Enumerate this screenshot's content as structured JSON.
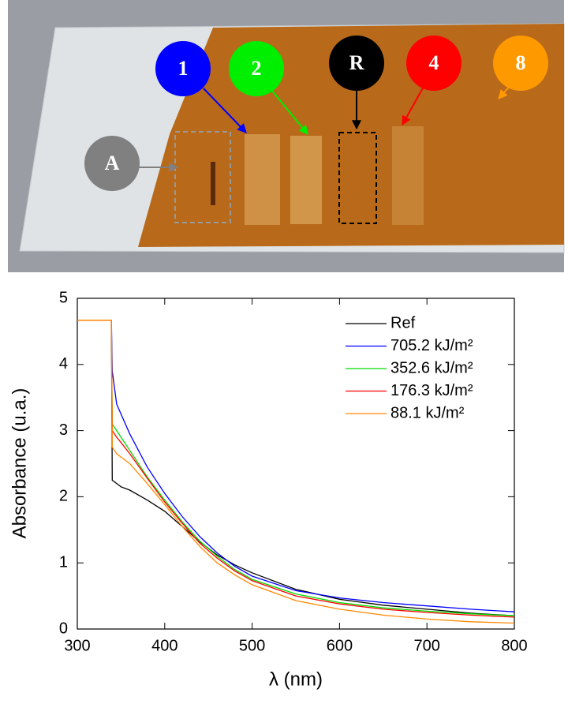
{
  "photo": {
    "markers": [
      "A",
      "1",
      "2",
      "R",
      "4",
      "8"
    ]
  },
  "chart_data": {
    "type": "line",
    "x_label": "λ (nm)",
    "y_label": "Absorbance (u.a.)",
    "xlim": [
      300,
      800
    ],
    "xticks": [
      300,
      400,
      500,
      600,
      700,
      800
    ],
    "ylim": [
      0,
      5
    ],
    "yticks": [
      0,
      1,
      2,
      3,
      4,
      5
    ],
    "legend": "upper right",
    "x": [
      300,
      320,
      339,
      340,
      345,
      350,
      360,
      380,
      400,
      420,
      440,
      460,
      480,
      500,
      550,
      600,
      650,
      700,
      750,
      800
    ],
    "series": [
      {
        "name": "Ref",
        "color": "#000000",
        "values": [
          4.67,
          4.67,
          4.67,
          2.25,
          2.2,
          2.15,
          2.1,
          1.95,
          1.78,
          1.55,
          1.32,
          1.12,
          0.97,
          0.85,
          0.6,
          0.45,
          0.36,
          0.3,
          0.24,
          0.2
        ]
      },
      {
        "name": "705.2 kJ/m²",
        "color": "#0000ff",
        "values": [
          4.67,
          4.67,
          4.67,
          3.9,
          3.4,
          3.25,
          2.95,
          2.45,
          2.05,
          1.7,
          1.4,
          1.15,
          0.95,
          0.8,
          0.58,
          0.47,
          0.4,
          0.35,
          0.3,
          0.26
        ]
      },
      {
        "name": "352.6 kJ/m²",
        "color": "#00dd00",
        "values": [
          4.67,
          4.67,
          4.67,
          3.1,
          3.0,
          2.9,
          2.7,
          2.3,
          1.95,
          1.62,
          1.33,
          1.1,
          0.9,
          0.75,
          0.53,
          0.4,
          0.32,
          0.27,
          0.23,
          0.2
        ]
      },
      {
        "name": "176.3 kJ/m²",
        "color": "#ff0000",
        "values": [
          4.67,
          4.67,
          4.67,
          3.0,
          2.9,
          2.82,
          2.65,
          2.28,
          1.92,
          1.6,
          1.3,
          1.07,
          0.88,
          0.73,
          0.5,
          0.38,
          0.3,
          0.25,
          0.21,
          0.18
        ]
      },
      {
        "name": "88.1 kJ/m²",
        "color": "#ff8800",
        "values": [
          4.67,
          4.67,
          4.67,
          2.75,
          2.65,
          2.6,
          2.5,
          2.2,
          1.88,
          1.55,
          1.25,
          1.0,
          0.82,
          0.67,
          0.43,
          0.3,
          0.21,
          0.15,
          0.11,
          0.09
        ]
      }
    ]
  }
}
